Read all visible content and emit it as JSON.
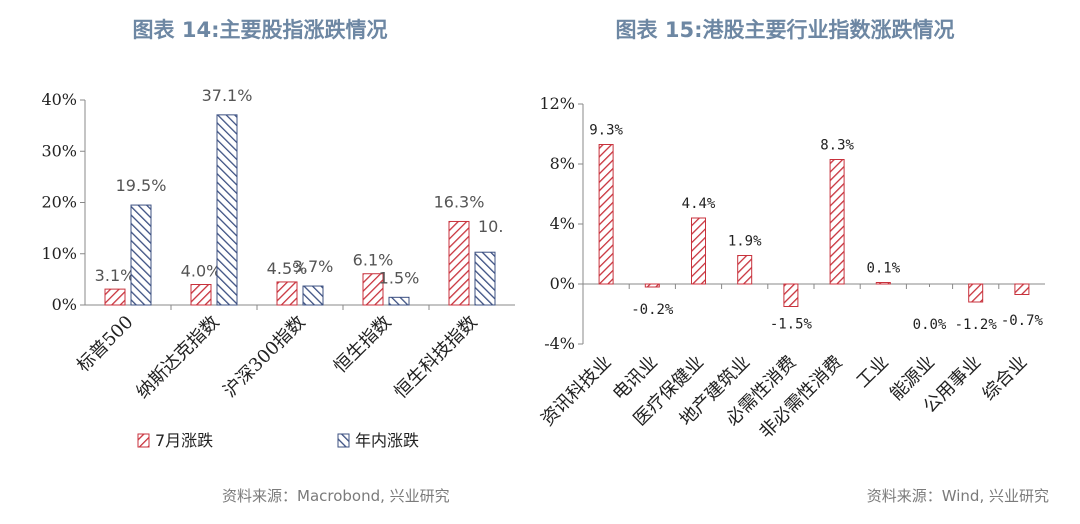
{
  "titles": {
    "left": "图表 14:主要股指涨跌情况",
    "right": "图表 15:港股主要行业指数涨跌情况"
  },
  "sources": {
    "left": "资料来源：Macrobond, 兴业研究",
    "right": "资料来源：Wind, 兴业研究"
  },
  "colors": {
    "red": "#c8323c",
    "blue": "#3c5082",
    "negative_label": "#e00000"
  },
  "chart_data": [
    {
      "type": "bar",
      "categories": [
        "标普500",
        "纳斯达克指数",
        "沪深300指数",
        "恒生指数",
        "恒生科技指数"
      ],
      "series": [
        {
          "name": "7月涨跌",
          "values": [
            3.1,
            4.0,
            4.5,
            6.1,
            16.3
          ],
          "labels": [
            "3.1%",
            "4.0%",
            "4.5%",
            "6.1%",
            "16.3%"
          ]
        },
        {
          "name": "年内涨跌",
          "values": [
            19.5,
            37.1,
            3.7,
            1.5,
            10.3
          ],
          "labels": [
            "19.5%",
            "37.1%",
            "3.7%",
            "1.5%",
            "10."
          ]
        }
      ],
      "yticks": [
        "0%",
        "10%",
        "20%",
        "30%",
        "40%"
      ],
      "ylim": [
        0,
        40
      ],
      "legend": "bottom",
      "grid": false
    },
    {
      "type": "bar",
      "categories": [
        "资讯科技业",
        "电讯业",
        "医疗保健业",
        "地产建筑业",
        "必需性消费",
        "非必需性消费",
        "工业",
        "能源业",
        "公用事业",
        "综合业"
      ],
      "series": [
        {
          "values": [
            9.3,
            -0.2,
            4.4,
            1.9,
            -1.5,
            8.3,
            0.1,
            0.0,
            -1.2,
            -0.7
          ],
          "labels": [
            "9.3%",
            "-0.2%",
            "4.4%",
            "1.9%",
            "-1.5%",
            "8.3%",
            "0.1%",
            "0.0%",
            "-1.2%",
            "-0.7%"
          ]
        }
      ],
      "yticks": [
        "-4%",
        "0%",
        "4%",
        "8%",
        "12%"
      ],
      "ylim": [
        -4,
        12
      ],
      "grid": false
    }
  ]
}
